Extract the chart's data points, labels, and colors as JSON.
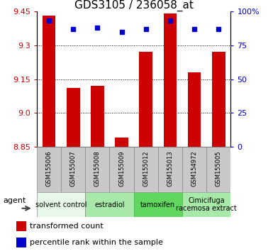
{
  "title": "GDS3105 / 236058_at",
  "samples": [
    "GSM155006",
    "GSM155007",
    "GSM155008",
    "GSM155009",
    "GSM155012",
    "GSM155013",
    "GSM154972",
    "GSM155005"
  ],
  "bar_values": [
    9.43,
    9.11,
    9.12,
    8.89,
    9.27,
    9.44,
    9.18,
    9.27
  ],
  "dot_values": [
    93,
    87,
    88,
    85,
    87,
    93,
    87,
    87
  ],
  "y_min": 8.85,
  "y_max": 9.45,
  "y_ticks": [
    8.85,
    9.0,
    9.15,
    9.3,
    9.45
  ],
  "y2_ticks": [
    0,
    25,
    50,
    75,
    100
  ],
  "y2_tick_labels": [
    "0",
    "25",
    "50",
    "75",
    "100%"
  ],
  "bar_color": "#cc0000",
  "dot_color": "#0000cc",
  "groups": [
    {
      "label": "solvent control",
      "start": 0,
      "end": 2
    },
    {
      "label": "estradiol",
      "start": 2,
      "end": 4
    },
    {
      "label": "tamoxifen",
      "start": 4,
      "end": 6
    },
    {
      "label": "Cimicifuga\nracemosa extract",
      "start": 6,
      "end": 8
    }
  ],
  "group_colors": [
    "#e8f8e8",
    "#a8e8a8",
    "#60d860",
    "#a8e8a8"
  ],
  "sample_box_color": "#c8c8c8",
  "agent_label": "agent",
  "legend_bar_label": "transformed count",
  "legend_dot_label": "percentile rank within the sample",
  "title_fontsize": 11,
  "axis_tick_fontsize": 8,
  "sample_fontsize": 6,
  "group_label_fontsize": 7,
  "legend_fontsize": 8
}
